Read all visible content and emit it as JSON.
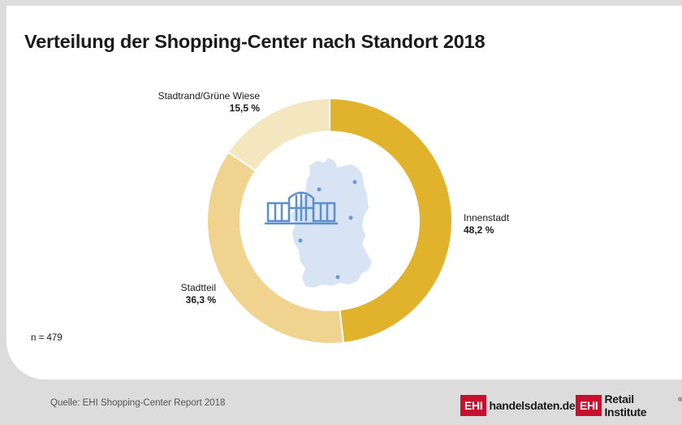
{
  "title": "Verteilung der Shopping-Center nach Standort 2018",
  "note": "n = 479",
  "source": "Quelle: EHI Shopping-Center Report 2018",
  "brands": {
    "handelsdaten_box": "EHI",
    "handelsdaten_text": "handelsdaten.de",
    "institute_box": "EHI",
    "institute_text": "Retail Institute",
    "registered_mark": "®"
  },
  "colors": {
    "innenstadt": "#e1b22b",
    "stadtteil": "#efd38e",
    "stadtrand": "#f4e6bf",
    "map": "#d8e4f3",
    "building": "#5b8fd0",
    "brand_red": "#c8102e"
  },
  "chart_data": {
    "type": "pie",
    "subtype": "donut",
    "title": "Verteilung der Shopping-Center nach Standort 2018",
    "slices": [
      {
        "label": "Innenstadt",
        "value": 48.2,
        "value_label": "48,2 %",
        "color": "#e1b22b"
      },
      {
        "label": "Stadtteil",
        "value": 36.3,
        "value_label": "36,3 %",
        "color": "#efd38e"
      },
      {
        "label": "Stadtrand/Grüne Wiese",
        "value": 15.5,
        "value_label": "15,5 %",
        "color": "#f4e6bf"
      }
    ],
    "start": "top",
    "direction": "clockwise",
    "center_icon": "germany-map-with-shopping-center-icon"
  }
}
